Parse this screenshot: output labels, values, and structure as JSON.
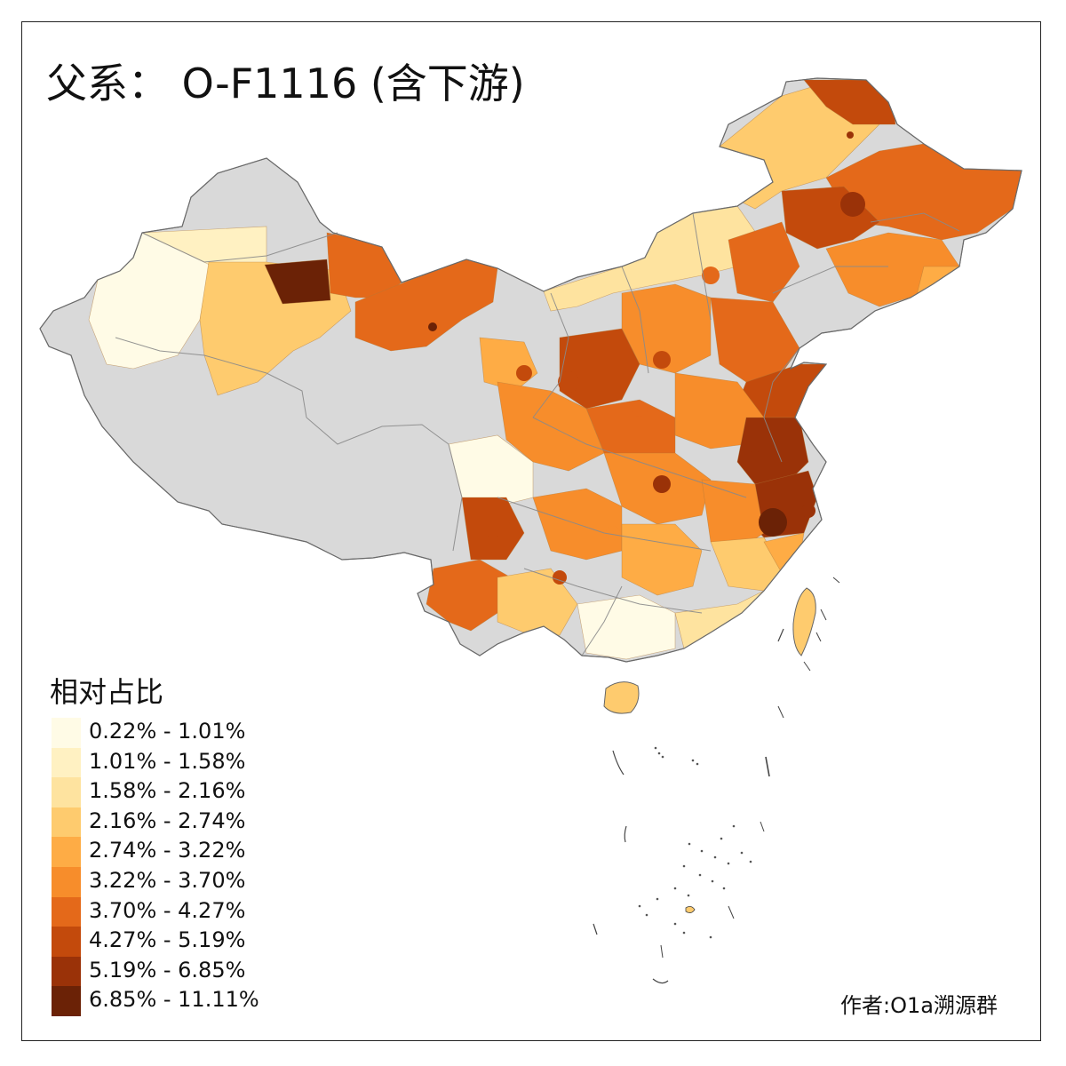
{
  "title": "父系： O-F1116 (含下游)",
  "legend": {
    "title": "相对占比",
    "bins": [
      {
        "label": "0.22% - 1.01%",
        "color": "#fffbe6"
      },
      {
        "label": "1.01% - 1.58%",
        "color": "#fff1c2"
      },
      {
        "label": "1.58% - 2.16%",
        "color": "#fee39f"
      },
      {
        "label": "2.16% - 2.74%",
        "color": "#fecb6e"
      },
      {
        "label": "2.74% - 3.22%",
        "color": "#feac45"
      },
      {
        "label": "3.22% - 3.70%",
        "color": "#f78d2b"
      },
      {
        "label": "3.70% - 4.27%",
        "color": "#e4691a"
      },
      {
        "label": "4.27% - 5.19%",
        "color": "#c34a0c"
      },
      {
        "label": "5.19% - 6.85%",
        "color": "#9a3208"
      },
      {
        "label": "6.85% - 11.11%",
        "color": "#6b2206"
      }
    ]
  },
  "no_data_color": "#d9d9d9",
  "credit": "作者:O1a溯源群"
}
